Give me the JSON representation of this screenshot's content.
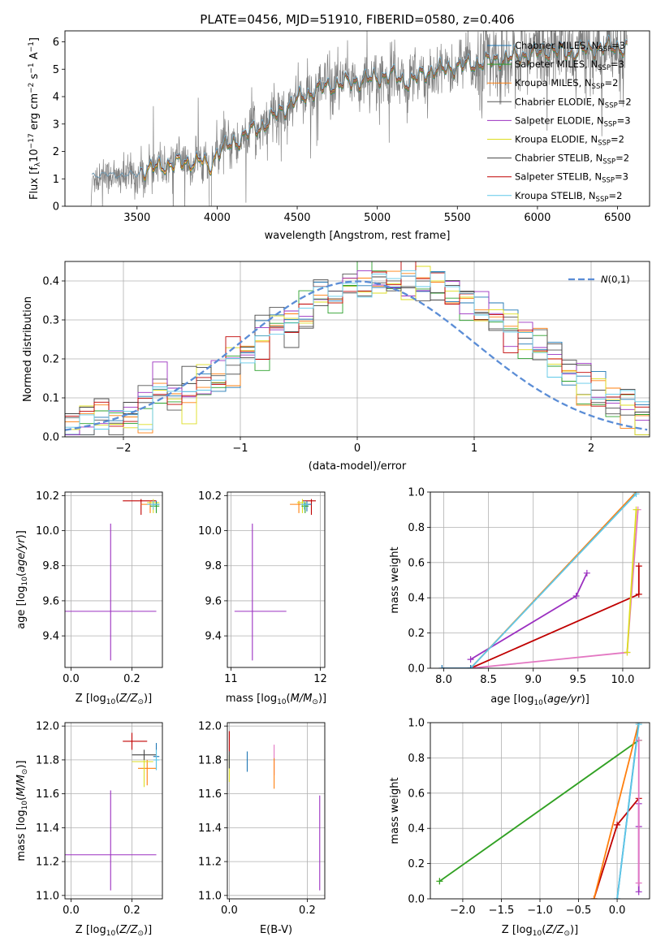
{
  "title": "PLATE=0456, MJD=51910, FIBERID=0580, z=0.406",
  "colors": {
    "chabrier_miles": "#1f77b4",
    "salpeter_miles": "#2ca02c",
    "kroupa_miles": "#ff7f0e",
    "chabrier_elodie": "#555555",
    "salpeter_elodie": "#9b30c0",
    "kroupa_elodie": "#dddd20",
    "chabrier_stelib": "#444444",
    "salpeter_stelib": "#c00000",
    "kroupa_stelib": "#5fc8e8",
    "gauss": "#5b8dd6",
    "pink": "#e377c2",
    "spectrum": "#7f7f7f"
  },
  "chart_data": [
    {
      "id": "spectrum",
      "type": "line",
      "xlabel": "wavelength [Angstrom, rest frame]",
      "ylabel": "Flux [f_λ 10^-17 erg cm^-2 s^-1 A^-1]",
      "xlim": [
        3050,
        6700
      ],
      "ylim": [
        0,
        6.4
      ],
      "xticks": [
        3500,
        4000,
        4500,
        5000,
        5500,
        6000,
        6500
      ],
      "yticks": [
        0,
        1,
        2,
        3,
        4,
        5,
        6
      ],
      "legend_position": "top-right",
      "legend": [
        {
          "label": "Chabrier MILES, N_SSP=3",
          "colorKey": "chabrier_miles"
        },
        {
          "label": "Salpeter MILES, N_SSP=3",
          "colorKey": "salpeter_miles"
        },
        {
          "label": "Kroupa MILES, N_SSP=2",
          "colorKey": "kroupa_miles"
        },
        {
          "label": "Chabrier ELODIE, N_SSP=2",
          "colorKey": "chabrier_elodie"
        },
        {
          "label": "Salpeter ELODIE, N_SSP=3",
          "colorKey": "salpeter_elodie"
        },
        {
          "label": "Kroupa ELODIE, N_SSP=2",
          "colorKey": "kroupa_elodie"
        },
        {
          "label": "Chabrier STELIB, N_SSP=2",
          "colorKey": "chabrier_stelib"
        },
        {
          "label": "Salpeter STELIB, N_SSP=3",
          "colorKey": "salpeter_stelib"
        },
        {
          "label": "Kroupa STELIB, N_SSP=2",
          "colorKey": "kroupa_stelib"
        }
      ],
      "continuum": [
        [
          3210,
          0.0
        ],
        [
          3220,
          0.9
        ],
        [
          3300,
          1.1
        ],
        [
          3400,
          1.2
        ],
        [
          3500,
          1.3
        ],
        [
          3600,
          1.4
        ],
        [
          3700,
          1.55
        ],
        [
          3800,
          1.6
        ],
        [
          3900,
          1.7
        ],
        [
          3950,
          1.4
        ],
        [
          4000,
          2.0
        ],
        [
          4100,
          2.3
        ],
        [
          4200,
          2.7
        ],
        [
          4300,
          3.0
        ],
        [
          4400,
          3.5
        ],
        [
          4500,
          3.9
        ],
        [
          4600,
          4.2
        ],
        [
          4700,
          4.4
        ],
        [
          4800,
          4.5
        ],
        [
          4900,
          4.6
        ],
        [
          5000,
          4.7
        ],
        [
          5100,
          4.8
        ],
        [
          5200,
          4.5
        ],
        [
          5300,
          4.9
        ],
        [
          5400,
          5.0
        ],
        [
          5500,
          5.1
        ],
        [
          5600,
          5.2
        ],
        [
          5700,
          5.3
        ],
        [
          5800,
          5.4
        ],
        [
          5900,
          5.5
        ],
        [
          6000,
          5.6
        ],
        [
          6100,
          5.7
        ],
        [
          6200,
          5.6
        ],
        [
          6300,
          5.7
        ],
        [
          6400,
          5.8
        ],
        [
          6500,
          5.8
        ],
        [
          6560,
          5.8
        ]
      ]
    },
    {
      "id": "residuals",
      "type": "histogram",
      "xlabel": "(data-model)/error",
      "ylabel": "Normed distribution",
      "xlim": [
        -2.5,
        2.5
      ],
      "ylim": [
        0,
        0.45
      ],
      "xticks": [
        -2,
        -1,
        0,
        1,
        2
      ],
      "yticks": [
        0.0,
        0.1,
        0.2,
        0.3,
        0.4
      ],
      "grid": true,
      "legend": [
        {
          "label": "N(0,1)",
          "colorKey": "gauss"
        }
      ],
      "legend_position": "top-right"
    },
    {
      "id": "age_vs_Z",
      "type": "scatter",
      "xlabel": "Z [log10(Z/Z⊙)]",
      "ylabel": "age [log10(age/yr)]",
      "xlim": [
        -0.02,
        0.3
      ],
      "ylim": [
        9.22,
        10.22
      ],
      "xticks": [
        0.0,
        0.2
      ],
      "yticks": [
        9.4,
        9.6,
        9.8,
        10.0,
        10.2
      ],
      "grid": true,
      "points": [
        {
          "x": 0.13,
          "y": 9.54,
          "xerr": [
            0.15,
            0.15
          ],
          "yerr": [
            0.28,
            0.5
          ],
          "colorKey": "salpeter_elodie"
        },
        {
          "x": 0.23,
          "y": 10.17,
          "xerr": [
            0.06,
            0.05
          ],
          "yerr": [
            0.08,
            0.01
          ],
          "colorKey": "salpeter_stelib"
        },
        {
          "x": 0.26,
          "y": 10.15,
          "xerr": [
            0.03,
            0.03
          ],
          "yerr": [
            0.05,
            0.02
          ],
          "colorKey": "kroupa_miles"
        },
        {
          "x": 0.27,
          "y": 10.16,
          "xerr": [
            0.02,
            0.02
          ],
          "yerr": [
            0.06,
            0.02
          ],
          "colorKey": "kroupa_elodie"
        },
        {
          "x": 0.28,
          "y": 10.15,
          "xerr": [
            0.01,
            0.01
          ],
          "yerr": [
            0.04,
            0.02
          ],
          "colorKey": "chabrier_miles"
        },
        {
          "x": 0.28,
          "y": 10.14,
          "xerr": [
            0.02,
            0.01
          ],
          "yerr": [
            0.04,
            0.02
          ],
          "colorKey": "salpeter_miles"
        },
        {
          "x": 0.27,
          "y": 10.15,
          "xerr": [
            0.02,
            0.02
          ],
          "yerr": [
            0.03,
            0.02
          ],
          "colorKey": "kroupa_stelib"
        }
      ]
    },
    {
      "id": "age_vs_mass",
      "type": "scatter",
      "xlabel": "mass [log10(M/M⊙)]",
      "ylabel": "",
      "xlim": [
        10.96,
        12.05
      ],
      "ylim": [
        9.22,
        10.22
      ],
      "xticks": [
        11,
        12
      ],
      "yticks": [
        9.4,
        9.6,
        9.8,
        10.0,
        10.2
      ],
      "grid": true,
      "points": [
        {
          "x": 11.24,
          "y": 9.54,
          "xerr": [
            0.2,
            0.38
          ],
          "yerr": [
            0.28,
            0.5
          ],
          "colorKey": "salpeter_elodie"
        },
        {
          "x": 11.9,
          "y": 10.17,
          "xerr": [
            0.1,
            0.05
          ],
          "yerr": [
            0.08,
            0.01
          ],
          "colorKey": "salpeter_stelib"
        },
        {
          "x": 11.76,
          "y": 10.15,
          "xerr": [
            0.1,
            0.05
          ],
          "yerr": [
            0.05,
            0.02
          ],
          "colorKey": "kroupa_miles"
        },
        {
          "x": 11.8,
          "y": 10.16,
          "xerr": [
            0.06,
            0.04
          ],
          "yerr": [
            0.06,
            0.02
          ],
          "colorKey": "kroupa_elodie"
        },
        {
          "x": 11.85,
          "y": 10.15,
          "xerr": [
            0.05,
            0.05
          ],
          "yerr": [
            0.04,
            0.02
          ],
          "colorKey": "chabrier_miles"
        },
        {
          "x": 11.83,
          "y": 10.14,
          "xerr": [
            0.04,
            0.04
          ],
          "yerr": [
            0.04,
            0.02
          ],
          "colorKey": "salpeter_miles"
        },
        {
          "x": 11.82,
          "y": 10.15,
          "xerr": [
            0.04,
            0.04
          ],
          "yerr": [
            0.03,
            0.02
          ],
          "colorKey": "kroupa_stelib"
        }
      ]
    },
    {
      "id": "massweight_vs_age",
      "type": "line",
      "xlabel": "age [log10(age/yr)]",
      "ylabel": "mass weight",
      "xlim": [
        7.85,
        10.3
      ],
      "ylim": [
        0,
        1.0
      ],
      "xticks": [
        8.0,
        8.5,
        9.0,
        9.5,
        10.0
      ],
      "yticks": [
        0.0,
        0.2,
        0.4,
        0.6,
        0.8,
        1.0
      ],
      "grid": true,
      "series": [
        {
          "colorKey": "salpeter_elodie",
          "x": [
            8.3,
            9.48,
            9.6
          ],
          "y": [
            0.05,
            0.41,
            0.54
          ]
        },
        {
          "colorKey": "salpeter_stelib",
          "x": [
            8.3,
            10.18,
            10.18
          ],
          "y": [
            0.0,
            0.42,
            0.58
          ]
        },
        {
          "colorKey": "pink",
          "x": [
            8.3,
            10.05,
            10.17
          ],
          "y": [
            0.0,
            0.09,
            0.9
          ]
        },
        {
          "colorKey": "kroupa_miles",
          "x": [
            8.3,
            10.15
          ],
          "y": [
            0.0,
            1.0
          ]
        },
        {
          "colorKey": "kroupa_stelib",
          "x": [
            8.3,
            10.15
          ],
          "y": [
            0.0,
            0.99
          ]
        },
        {
          "colorKey": "kroupa_elodie",
          "x": [
            10.05,
            10.15
          ],
          "y": [
            0.09,
            0.9
          ]
        },
        {
          "colorKey": "chabrier_miles",
          "x": [
            7.98,
            8.3
          ],
          "y": [
            0.0,
            0.0
          ]
        }
      ]
    },
    {
      "id": "mass_vs_Z",
      "type": "scatter",
      "xlabel": "Z [log10(Z/Z⊙)]",
      "ylabel": "mass [log10(M/M⊙)]",
      "xlim": [
        -0.02,
        0.3
      ],
      "ylim": [
        10.98,
        12.02
      ],
      "xticks": [
        0.0,
        0.2
      ],
      "yticks": [
        11.0,
        11.2,
        11.4,
        11.6,
        11.8,
        12.0
      ],
      "grid": true,
      "points": [
        {
          "x": 0.13,
          "y": 11.24,
          "xerr": [
            0.15,
            0.15
          ],
          "yerr": [
            0.21,
            0.38
          ],
          "colorKey": "salpeter_elodie"
        },
        {
          "x": 0.2,
          "y": 11.91,
          "xerr": [
            0.03,
            0.05
          ],
          "yerr": [
            0.05,
            0.05
          ],
          "colorKey": "salpeter_stelib"
        },
        {
          "x": 0.25,
          "y": 11.75,
          "xerr": [
            0.03,
            0.03
          ],
          "yerr": [
            0.1,
            0.05
          ],
          "colorKey": "kroupa_miles"
        },
        {
          "x": 0.24,
          "y": 11.79,
          "xerr": [
            0.04,
            0.03
          ],
          "yerr": [
            0.15,
            0.02
          ],
          "colorKey": "kroupa_elodie"
        },
        {
          "x": 0.24,
          "y": 11.83,
          "xerr": [
            0.04,
            0.04
          ],
          "yerr": [
            0.03,
            0.03
          ],
          "colorKey": "chabrier_stelib"
        },
        {
          "x": 0.28,
          "y": 11.82,
          "xerr": [
            0.01,
            0.01
          ],
          "yerr": [
            0.08,
            0.08
          ],
          "colorKey": "chabrier_miles"
        },
        {
          "x": 0.28,
          "y": 11.8,
          "xerr": [
            0.01,
            0.01
          ],
          "yerr": [
            0.06,
            0.06
          ],
          "colorKey": "kroupa_stelib"
        }
      ]
    },
    {
      "id": "mass_vs_ebv",
      "type": "scatter",
      "xlabel": "E(B-V)",
      "ylabel": "",
      "xlim": [
        -0.005,
        0.245
      ],
      "ylim": [
        10.98,
        12.02
      ],
      "xticks": [
        0.0,
        0.2
      ],
      "yticks": [
        11.0,
        11.2,
        11.4,
        11.6,
        11.8,
        12.0
      ],
      "grid": true,
      "points": [
        {
          "x": 0.232,
          "y": 11.24,
          "xerr": [
            0,
            0
          ],
          "yerr": [
            0.21,
            0.35
          ],
          "colorKey": "salpeter_elodie"
        },
        {
          "x": 0.0,
          "y": 11.91,
          "xerr": [
            0,
            0
          ],
          "yerr": [
            0.06,
            0.06
          ],
          "colorKey": "salpeter_stelib"
        },
        {
          "x": 0.0,
          "y": 11.77,
          "xerr": [
            0,
            0
          ],
          "yerr": [
            0.1,
            0.06
          ],
          "colorKey": "kroupa_elodie"
        },
        {
          "x": 0.0,
          "y": 11.8,
          "xerr": [
            0,
            0
          ],
          "yerr": [
            0.05,
            0.05
          ],
          "colorKey": "chabrier_stelib"
        },
        {
          "x": 0.046,
          "y": 11.79,
          "xerr": [
            0,
            0
          ],
          "yerr": [
            0.06,
            0.06
          ],
          "colorKey": "chabrier_miles"
        },
        {
          "x": 0.115,
          "y": 11.8,
          "xerr": [
            0,
            0
          ],
          "yerr": [
            0.09,
            0.09
          ],
          "colorKey": "pink"
        },
        {
          "x": 0.115,
          "y": 11.72,
          "xerr": [
            0,
            0
          ],
          "yerr": [
            0.09,
            0.09
          ],
          "colorKey": "kroupa_miles"
        }
      ]
    },
    {
      "id": "massweight_vs_Z",
      "type": "line",
      "xlabel": "Z [log10(Z/Z⊙)]",
      "ylabel": "mass weight",
      "xlim": [
        -2.42,
        0.42
      ],
      "ylim": [
        0,
        1.0
      ],
      "xticks": [
        -2.0,
        -1.5,
        -1.0,
        -0.5,
        0.0
      ],
      "yticks": [
        0.0,
        0.2,
        0.4,
        0.6,
        0.8,
        1.0
      ],
      "grid": true,
      "series": [
        {
          "colorKey": "kroupa_elodie",
          "x": [
            -2.3,
            0.28
          ],
          "y": [
            0.1,
            0.9
          ]
        },
        {
          "colorKey": "salpeter_miles",
          "x": [
            -2.3,
            0.28
          ],
          "y": [
            0.1,
            0.9
          ]
        },
        {
          "colorKey": "salpeter_stelib",
          "x": [
            -0.3,
            -0.0,
            0.28
          ],
          "y": [
            0.0,
            0.42,
            0.57
          ]
        },
        {
          "colorKey": "kroupa_miles",
          "x": [
            -0.3,
            0.28
          ],
          "y": [
            0.0,
            1.0
          ]
        },
        {
          "colorKey": "chabrier_miles",
          "x": [
            0.0,
            0.28
          ],
          "y": [
            0.0,
            1.0
          ]
        },
        {
          "colorKey": "kroupa_stelib",
          "x": [
            0.0,
            0.28
          ],
          "y": [
            0.0,
            0.99
          ]
        },
        {
          "colorKey": "salpeter_elodie",
          "x": [
            0.28,
            0.28,
            0.28
          ],
          "y": [
            0.04,
            0.41,
            0.54
          ]
        },
        {
          "colorKey": "pink",
          "x": [
            0.28,
            0.28
          ],
          "y": [
            0.09,
            0.9
          ]
        }
      ]
    }
  ]
}
